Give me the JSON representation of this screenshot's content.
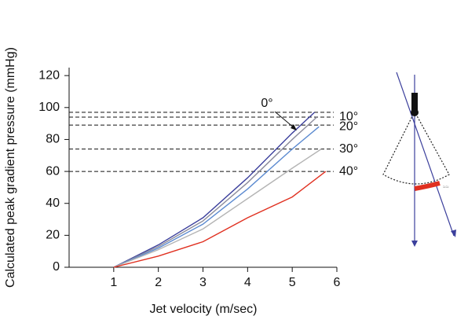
{
  "chart_data": {
    "type": "line",
    "x_label": "Jet velocity (m/sec)",
    "y_label": "Calculated peak gradient pressure (mmHg)",
    "xlim": [
      0,
      6
    ],
    "xticks": [
      1,
      2,
      3,
      4,
      5,
      6
    ],
    "ylim": [
      0,
      125
    ],
    "yticks": [
      0,
      20,
      40,
      60,
      80,
      100,
      120
    ],
    "reference_lines": [
      97,
      94,
      89,
      74,
      60
    ],
    "series": [
      {
        "name": "0°",
        "color": "#3b3f9c",
        "x": [
          1,
          2,
          3,
          4,
          5,
          5.5
        ],
        "values": [
          0,
          14,
          31,
          56,
          84,
          97
        ]
      },
      {
        "name": "10°",
        "color": "#8c8c9c",
        "x": [
          1,
          2,
          3,
          4,
          5,
          5.55
        ],
        "values": [
          0,
          13,
          29,
          53,
          80,
          94
        ]
      },
      {
        "name": "20°",
        "color": "#5b8ad0",
        "x": [
          1,
          2,
          3,
          4,
          5,
          5.6
        ],
        "values": [
          0,
          12,
          27,
          49,
          74,
          88
        ]
      },
      {
        "name": "30°",
        "color": "#b4b4b4",
        "x": [
          1,
          2,
          3,
          4,
          5,
          5.65
        ],
        "values": [
          0,
          11,
          24,
          43,
          62,
          74
        ]
      },
      {
        "name": "40°",
        "color": "#e03020",
        "x": [
          1,
          2,
          3,
          4,
          5,
          5.75
        ],
        "values": [
          0,
          7,
          16,
          31,
          44,
          60
        ]
      }
    ]
  }
}
